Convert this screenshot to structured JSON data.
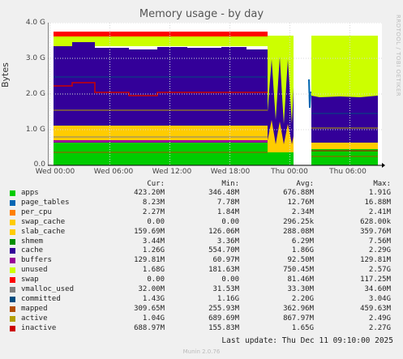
{
  "title": "Memory usage - by day",
  "side_label": "RRDTOOL / TOBI OETIKER",
  "ylabel": "Bytes",
  "columns": {
    "cur": "Cur:",
    "min": "Min:",
    "avg": "Avg:",
    "max": "Max:"
  },
  "last_update": "Last update: Thu Dec 11 09:10:00 2025",
  "footer": "Munin 2.0.76",
  "chart_data": {
    "type": "area",
    "title": "Memory usage - by day",
    "ylabel": "Bytes",
    "y_ticks": [
      "0.0",
      "1.0 G",
      "2.0 G",
      "3.0 G",
      "4.0 G"
    ],
    "y_tick_values": [
      0,
      1,
      2,
      3,
      4
    ],
    "ylim": [
      0,
      4
    ],
    "x_ticks": [
      "Wed 00:00",
      "Wed 06:00",
      "Wed 12:00",
      "Wed 18:00",
      "Thu 00:00",
      "Thu 06:00"
    ],
    "x_tick_hours": [
      0,
      6,
      12,
      18,
      24,
      30
    ],
    "xlim": [
      -0.2,
      33.2
    ],
    "grid": true,
    "stacked_layers_at_wed_00": [
      {
        "name": "apps",
        "top": 0.62,
        "color": "#00cc00"
      },
      {
        "name": "slab_cache",
        "top": 1.08,
        "color": "#ffcc00"
      },
      {
        "name": "cache",
        "top": 3.35,
        "color": "#330099"
      },
      {
        "name": "unused",
        "top": 3.63,
        "color": "#ccff00"
      },
      {
        "name": "swap",
        "top": 3.75,
        "color": "#ff0000"
      }
    ]
  },
  "legend": [
    {
      "name": "apps",
      "color": "#00cc00",
      "cur": "423.20M",
      "min": "346.48M",
      "avg": "676.88M",
      "max": "1.91G"
    },
    {
      "name": "page_tables",
      "color": "#0066b3",
      "cur": "8.23M",
      "min": "7.78M",
      "avg": "12.76M",
      "max": "16.88M"
    },
    {
      "name": "per_cpu",
      "color": "#ff8000",
      "cur": "2.27M",
      "min": "1.84M",
      "avg": "2.34M",
      "max": "2.41M"
    },
    {
      "name": "swap_cache",
      "color": "#ffcc00",
      "cur": "0.00",
      "min": "0.00",
      "avg": "296.25k",
      "max": "628.00k"
    },
    {
      "name": "slab_cache",
      "color": "#ffcc00",
      "cur": "159.69M",
      "min": "126.06M",
      "avg": "288.08M",
      "max": "359.76M"
    },
    {
      "name": "shmem",
      "color": "#008f00",
      "cur": "3.44M",
      "min": "3.36M",
      "avg": "6.29M",
      "max": "7.56M"
    },
    {
      "name": "cache",
      "color": "#330099",
      "cur": "1.26G",
      "min": "554.70M",
      "avg": "1.86G",
      "max": "2.29G"
    },
    {
      "name": "buffers",
      "color": "#990099",
      "cur": "129.81M",
      "min": "60.97M",
      "avg": "92.50M",
      "max": "129.81M"
    },
    {
      "name": "unused",
      "color": "#ccff00",
      "cur": "1.68G",
      "min": "181.63M",
      "avg": "750.45M",
      "max": "2.57G"
    },
    {
      "name": "swap",
      "color": "#ff0000",
      "cur": "0.00",
      "min": "0.00",
      "avg": "81.46M",
      "max": "117.25M"
    },
    {
      "name": "vmalloc_used",
      "color": "#808080",
      "cur": "32.00M",
      "min": "31.53M",
      "avg": "33.30M",
      "max": "34.60M"
    },
    {
      "name": "committed",
      "color": "#004d80",
      "cur": "1.43G",
      "min": "1.16G",
      "avg": "2.20G",
      "max": "3.04G"
    },
    {
      "name": "mapped",
      "color": "#b34d00",
      "cur": "309.65M",
      "min": "255.93M",
      "avg": "362.96M",
      "max": "459.63M"
    },
    {
      "name": "active",
      "color": "#b3a000",
      "cur": "1.04G",
      "min": "689.69M",
      "avg": "867.97M",
      "max": "2.49G"
    },
    {
      "name": "inactive",
      "color": "#cc0000",
      "cur": "688.97M",
      "min": "155.83M",
      "avg": "1.65G",
      "max": "2.27G"
    }
  ]
}
